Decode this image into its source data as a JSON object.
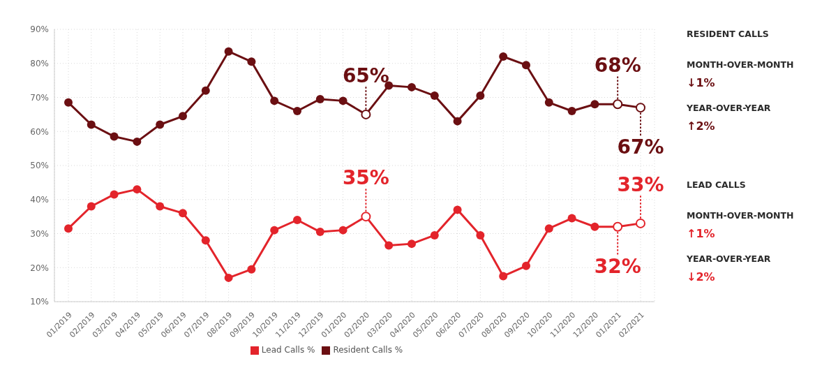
{
  "chart_data": {
    "type": "line",
    "categories": [
      "01/2019",
      "02/2019",
      "03/2019",
      "04/2019",
      "05/2019",
      "06/2019",
      "07/2019",
      "08/2019",
      "09/2019",
      "10/2019",
      "11/2019",
      "12/2019",
      "01/2020",
      "02/2020",
      "03/2020",
      "04/2020",
      "05/2020",
      "06/2020",
      "07/2020",
      "08/2020",
      "09/2020",
      "10/2020",
      "11/2020",
      "12/2020",
      "01/2021",
      "02/2021"
    ],
    "series": [
      {
        "name": "Lead Calls %",
        "color": "#e3242b",
        "values": [
          31.5,
          38,
          41.5,
          43,
          38,
          36,
          28,
          17,
          19.5,
          31,
          34,
          30.5,
          31,
          35,
          26.5,
          27,
          29.5,
          37,
          29.5,
          17.5,
          20.5,
          31.5,
          34.5,
          32,
          32,
          33
        ]
      },
      {
        "name": "Resident Calls %",
        "color": "#6b0f12",
        "values": [
          68.5,
          62,
          58.5,
          57,
          62,
          64.5,
          72,
          83.5,
          80.5,
          69,
          66,
          69.5,
          69,
          65,
          73.5,
          73,
          70.5,
          63,
          70.5,
          82,
          79.5,
          68.5,
          66,
          68,
          68,
          67
        ]
      }
    ],
    "ylim": [
      10,
      90
    ],
    "yticks": [
      {
        "value": 10,
        "label": "10%"
      },
      {
        "value": 20,
        "label": "20%"
      },
      {
        "value": 30,
        "label": "30%"
      },
      {
        "value": 40,
        "label": "40%"
      },
      {
        "value": 50,
        "label": "50%"
      },
      {
        "value": 60,
        "label": "60%"
      },
      {
        "value": 70,
        "label": "70%"
      },
      {
        "value": 80,
        "label": "80%"
      },
      {
        "value": 90,
        "label": "90%"
      }
    ],
    "grid": true,
    "legend": "bottom",
    "marker": "circle",
    "line_style": "solid",
    "annotations": [
      {
        "text": "65%",
        "x": "02/2020",
        "y": 65
      },
      {
        "text": "35%",
        "x": "02/2020",
        "y": 35
      },
      {
        "text": "68%",
        "x": "01/2021",
        "y": 68
      },
      {
        "text": "32%",
        "x": "01/2021",
        "y": 32
      },
      {
        "text": "67%",
        "x": "02/2021",
        "y": 67
      },
      {
        "text": "33%",
        "x": "02/2021",
        "y": 33
      },
      "RESIDENT CALLS",
      "MONTH-OVER-MONTH",
      "↓1%",
      "YEAR-OVER-YEAR",
      "↑2%",
      "LEAD CALLS",
      "MONTH-OVER-MONTH",
      "↑1%",
      "YEAR-OVER-YEAR",
      "↓2%"
    ]
  }
}
